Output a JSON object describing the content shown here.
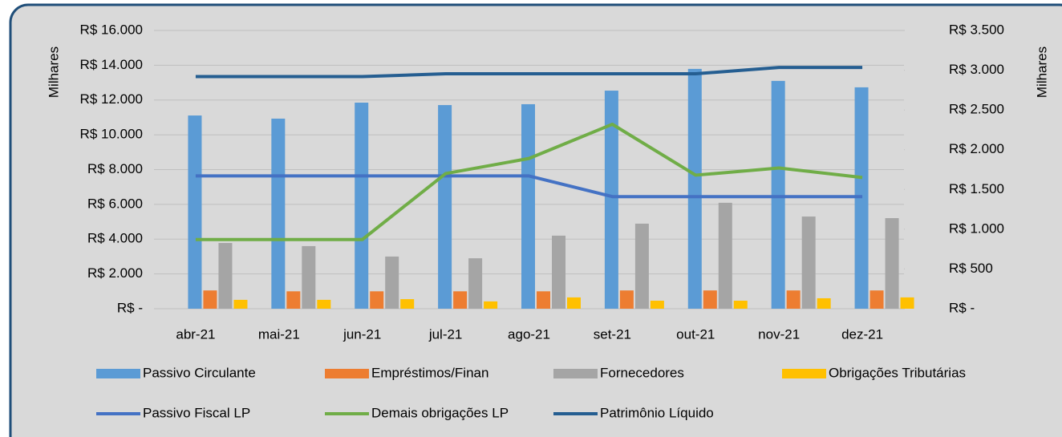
{
  "chart_data": {
    "type": "bar",
    "y_label": "Milhares",
    "y2_label": "Milhares",
    "categories": [
      "abr-21",
      "mai-21",
      "jun-21",
      "jul-21",
      "ago-21",
      "set-21",
      "out-21",
      "nov-21",
      "dez-21"
    ],
    "ylim": [
      0,
      16000
    ],
    "yticks": [
      {
        "value": 0,
        "label": "R$ -"
      },
      {
        "value": 2000,
        "label": "R$ 2.000"
      },
      {
        "value": 4000,
        "label": "R$ 4.000"
      },
      {
        "value": 6000,
        "label": "R$ 6.000"
      },
      {
        "value": 8000,
        "label": "R$ 8.000"
      },
      {
        "value": 10000,
        "label": "R$ 10.000"
      },
      {
        "value": 12000,
        "label": "R$ 12.000"
      },
      {
        "value": 14000,
        "label": "R$ 14.000"
      },
      {
        "value": 16000,
        "label": "R$ 16.000"
      }
    ],
    "y2lim": [
      0,
      3500
    ],
    "y2ticks": [
      {
        "value": 0,
        "label": "R$ -"
      },
      {
        "value": 500,
        "label": "R$ 500"
      },
      {
        "value": 1000,
        "label": "R$ 1.000"
      },
      {
        "value": 1500,
        "label": "R$ 1.500"
      },
      {
        "value": 2000,
        "label": "R$ 2.000"
      },
      {
        "value": 2500,
        "label": "R$ 2.500"
      },
      {
        "value": 3000,
        "label": "R$ 3.000"
      },
      {
        "value": 3500,
        "label": "R$ 3.500"
      }
    ],
    "grid": true,
    "legend": "bottom",
    "series": [
      {
        "name": "Passivo Circulante",
        "type": "bar",
        "color": "#5b9bd5",
        "values": [
          11110,
          10930,
          11850,
          11710,
          11760,
          12540,
          13790,
          13100,
          12730
        ]
      },
      {
        "name": "Empréstimos/Finan",
        "type": "bar",
        "color": "#ed7d31",
        "values": [
          1050,
          1000,
          1000,
          1000,
          1000,
          1050,
          1050,
          1050,
          1050
        ]
      },
      {
        "name": "Fornecedores",
        "type": "bar",
        "color": "#a5a5a5",
        "values": [
          3780,
          3600,
          3000,
          2900,
          4200,
          4890,
          6090,
          5300,
          5210
        ]
      },
      {
        "name": "Obrigações Tributárias",
        "type": "bar",
        "color": "#ffc000",
        "values": [
          510,
          510,
          550,
          420,
          650,
          460,
          460,
          600,
          650
        ]
      },
      {
        "name": "Passivo Fiscal LP",
        "type": "line",
        "axis": "y2",
        "color": "#4472c4",
        "values": [
          1670,
          1670,
          1670,
          1670,
          1670,
          1410,
          1410,
          1410,
          1410
        ]
      },
      {
        "name": "Demais obrigações LP",
        "type": "line",
        "axis": "y2",
        "color": "#70ad47",
        "values": [
          870,
          870,
          870,
          1700,
          1890,
          2320,
          1680,
          1770,
          1650
        ]
      },
      {
        "name": "Patrimônio Líquido",
        "type": "line",
        "axis": "y2",
        "color": "#255e91",
        "values": [
          2920,
          2920,
          2920,
          2955,
          2955,
          2955,
          2955,
          3035,
          3035
        ]
      }
    ]
  }
}
